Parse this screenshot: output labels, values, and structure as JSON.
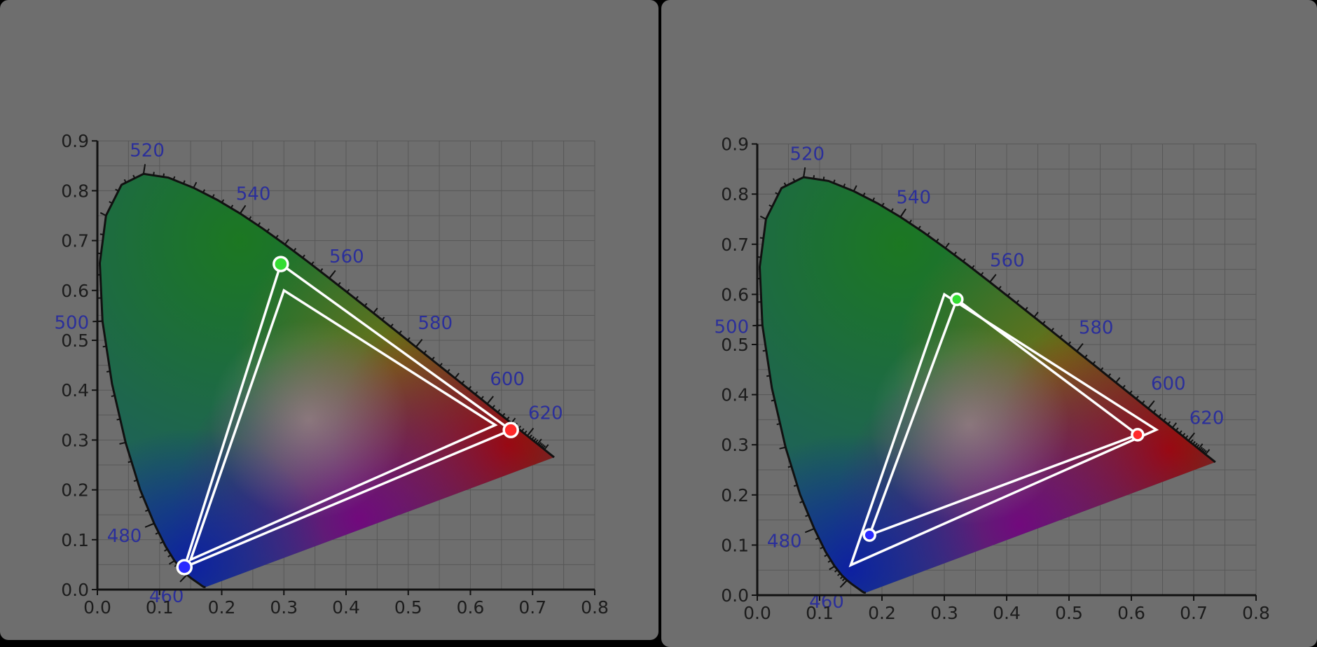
{
  "chart_data": [
    {
      "type": "scatter",
      "title": "",
      "xlabel": "",
      "ylabel": "",
      "xlim": [
        0,
        0.8
      ],
      "ylim": [
        0,
        0.9
      ],
      "x_ticks": [
        "0.0",
        "0.1",
        "0.2",
        "0.3",
        "0.4",
        "0.5",
        "0.6",
        "0.7",
        "0.8"
      ],
      "y_ticks": [
        "0.0",
        "0.1",
        "0.2",
        "0.3",
        "0.4",
        "0.5",
        "0.6",
        "0.7",
        "0.8",
        "0.9"
      ],
      "grid": true,
      "wavelength_labels": [
        "460",
        "480",
        "500",
        "520",
        "540",
        "560",
        "580",
        "600",
        "620"
      ],
      "series": [
        {
          "points": [
            {
              "x": 0.64,
              "y": 0.33
            },
            {
              "x": 0.3,
              "y": 0.6
            },
            {
              "x": 0.15,
              "y": 0.06
            }
          ]
        },
        {
          "points": [
            {
              "x": 0.665,
              "y": 0.32
            },
            {
              "x": 0.295,
              "y": 0.653
            },
            {
              "x": 0.14,
              "y": 0.045
            }
          ]
        }
      ],
      "markers": [
        {
          "x": 0.665,
          "y": 0.32,
          "color": "#ff2a2a"
        },
        {
          "x": 0.295,
          "y": 0.653,
          "color": "#33dd33"
        },
        {
          "x": 0.14,
          "y": 0.045,
          "color": "#2a2aff"
        }
      ]
    },
    {
      "type": "scatter",
      "title": "",
      "xlabel": "",
      "ylabel": "",
      "xlim": [
        0,
        0.8
      ],
      "ylim": [
        0,
        0.9
      ],
      "x_ticks": [
        "0.0",
        "0.1",
        "0.2",
        "0.3",
        "0.4",
        "0.5",
        "0.6",
        "0.7",
        "0.8"
      ],
      "y_ticks": [
        "0.0",
        "0.1",
        "0.2",
        "0.3",
        "0.4",
        "0.5",
        "0.6",
        "0.7",
        "0.8",
        "0.9"
      ],
      "grid": true,
      "wavelength_labels": [
        "460",
        "480",
        "500",
        "520",
        "540",
        "560",
        "580",
        "600",
        "620"
      ],
      "series": [
        {
          "points": [
            {
              "x": 0.64,
              "y": 0.33
            },
            {
              "x": 0.3,
              "y": 0.6
            },
            {
              "x": 0.15,
              "y": 0.06
            }
          ]
        },
        {
          "points": [
            {
              "x": 0.61,
              "y": 0.32
            },
            {
              "x": 0.32,
              "y": 0.59
            },
            {
              "x": 0.18,
              "y": 0.12
            }
          ]
        }
      ],
      "markers": [
        {
          "x": 0.61,
          "y": 0.32,
          "color": "#ff2a2a"
        },
        {
          "x": 0.32,
          "y": 0.59,
          "color": "#33dd33"
        },
        {
          "x": 0.18,
          "y": 0.12,
          "color": "#2a2aff"
        }
      ]
    }
  ],
  "colors": {
    "panel_background": "#6e6e6e",
    "wavelength_label": "#2b2f9a",
    "triangle_outline": "#ffffff",
    "locus_outline": "#111111"
  }
}
